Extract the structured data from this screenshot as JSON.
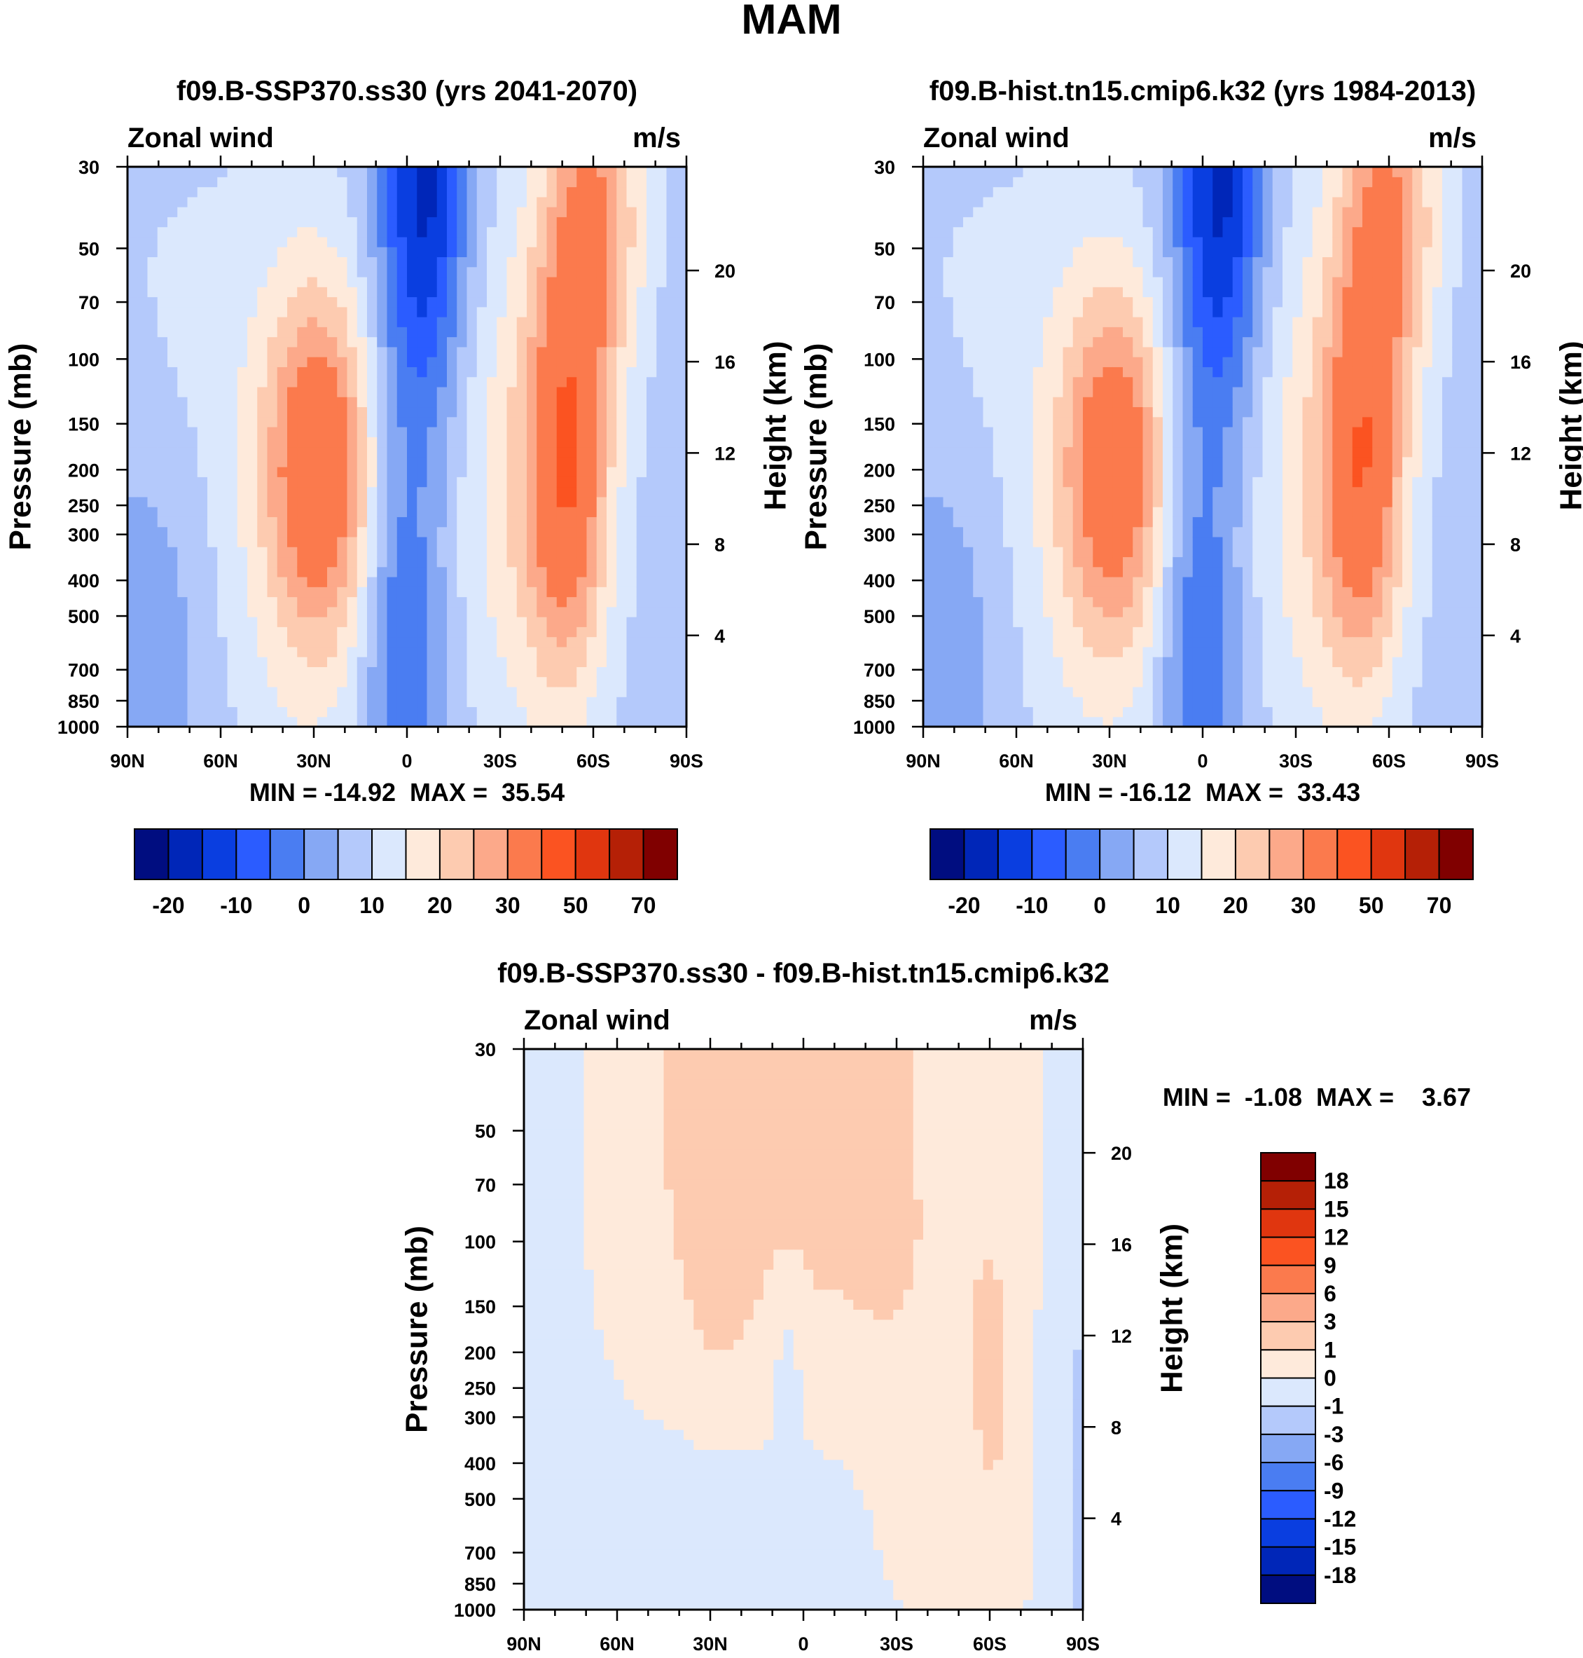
{
  "figure_title": "MAM",
  "palette": {
    "abs": [
      "#000d80",
      "#0026b8",
      "#0a3ee0",
      "#2b5cff",
      "#4a7df2",
      "#86a8f4",
      "#b4c9fb",
      "#dbe8fd",
      "#feeadb",
      "#fdcbb0",
      "#fca98a",
      "#fb7a4d",
      "#fb5321",
      "#e0360f",
      "#b52006",
      "#800000"
    ],
    "diff": [
      "#000d80",
      "#0026b8",
      "#0a3ee0",
      "#2b5cff",
      "#4a7df2",
      "#86a8f4",
      "#b4c9fb",
      "#dbe8fd",
      "#feeadb",
      "#fdcbb0",
      "#fca98a",
      "#fb7a4d",
      "#fb5321",
      "#e0360f",
      "#b52006",
      "#800000"
    ]
  },
  "chart_data": [
    {
      "id": "panel-ssp370",
      "type": "heatmap",
      "title": "f09.B-SSP370.ss30 (yrs 2041-2070)",
      "variable_label": "Zonal wind",
      "units_label": "m/s",
      "ylabel": "Pressure (mb)",
      "ylabel_right": "Height (km)",
      "x_ticks": [
        "90N",
        "60N",
        "30N",
        "0",
        "30S",
        "60S",
        "90S"
      ],
      "x_values": [
        90,
        60,
        30,
        0,
        -30,
        -60,
        -90
      ],
      "pressure_ticks": [
        30,
        50,
        70,
        100,
        150,
        200,
        250,
        300,
        400,
        500,
        700,
        850,
        1000
      ],
      "height_ticks": [
        20,
        16,
        12,
        8,
        4
      ],
      "ylim": [
        1000,
        30
      ],
      "stats_text": "MIN = -14.92  MAX =  35.54",
      "min": -14.92,
      "max": 35.54,
      "colorbar": {
        "levels": [
          -25,
          -20,
          -15,
          -10,
          -5,
          0,
          5,
          10,
          15,
          20,
          25,
          30,
          40,
          50,
          60,
          70
        ],
        "tick_labels": [
          "-20",
          "-10",
          "0",
          "10",
          "20",
          "30",
          "50",
          "70"
        ]
      }
    },
    {
      "id": "panel-hist",
      "type": "heatmap",
      "title": "f09.B-hist.tn15.cmip6.k32 (yrs 1984-2013)",
      "variable_label": "Zonal wind",
      "units_label": "m/s",
      "ylabel": "Pressure (mb)",
      "ylabel_right": "Height (km)",
      "x_ticks": [
        "90N",
        "60N",
        "30N",
        "0",
        "30S",
        "60S",
        "90S"
      ],
      "x_values": [
        90,
        60,
        30,
        0,
        -30,
        -60,
        -90
      ],
      "pressure_ticks": [
        30,
        50,
        70,
        100,
        150,
        200,
        250,
        300,
        400,
        500,
        700,
        850,
        1000
      ],
      "height_ticks": [
        20,
        16,
        12,
        8,
        4
      ],
      "ylim": [
        1000,
        30
      ],
      "stats_text": "MIN = -16.12  MAX =  33.43",
      "min": -16.12,
      "max": 33.43,
      "colorbar": {
        "levels": [
          -25,
          -20,
          -15,
          -10,
          -5,
          0,
          5,
          10,
          15,
          20,
          25,
          30,
          40,
          50,
          60,
          70
        ],
        "tick_labels": [
          "-20",
          "-10",
          "0",
          "10",
          "20",
          "30",
          "50",
          "70"
        ]
      }
    },
    {
      "id": "panel-diff",
      "type": "heatmap",
      "title": "f09.B-SSP370.ss30 - f09.B-hist.tn15.cmip6.k32",
      "variable_label": "Zonal wind",
      "units_label": "m/s",
      "ylabel": "Pressure (mb)",
      "ylabel_right": "Height (km)",
      "x_ticks": [
        "90N",
        "60N",
        "30N",
        "0",
        "30S",
        "60S",
        "90S"
      ],
      "x_values": [
        90,
        60,
        30,
        0,
        -30,
        -60,
        -90
      ],
      "pressure_ticks": [
        30,
        50,
        70,
        100,
        150,
        200,
        250,
        300,
        400,
        500,
        700,
        850,
        1000
      ],
      "height_ticks": [
        20,
        16,
        12,
        8,
        4
      ],
      "ylim": [
        1000,
        30
      ],
      "stats_text": "MIN =  -1.08  MAX =    3.67",
      "min": -1.08,
      "max": 3.67,
      "colorbar": {
        "levels": [
          -21,
          -18,
          -15,
          -12,
          -9,
          -6,
          -3,
          -1,
          0,
          1,
          3,
          6,
          9,
          12,
          15,
          18,
          21
        ],
        "tick_labels": [
          "18",
          "15",
          "12",
          "9",
          "6",
          "3",
          "1",
          "0",
          "-1",
          "-3",
          "-6",
          "-9",
          "-12",
          "-15",
          "-18"
        ]
      }
    }
  ]
}
